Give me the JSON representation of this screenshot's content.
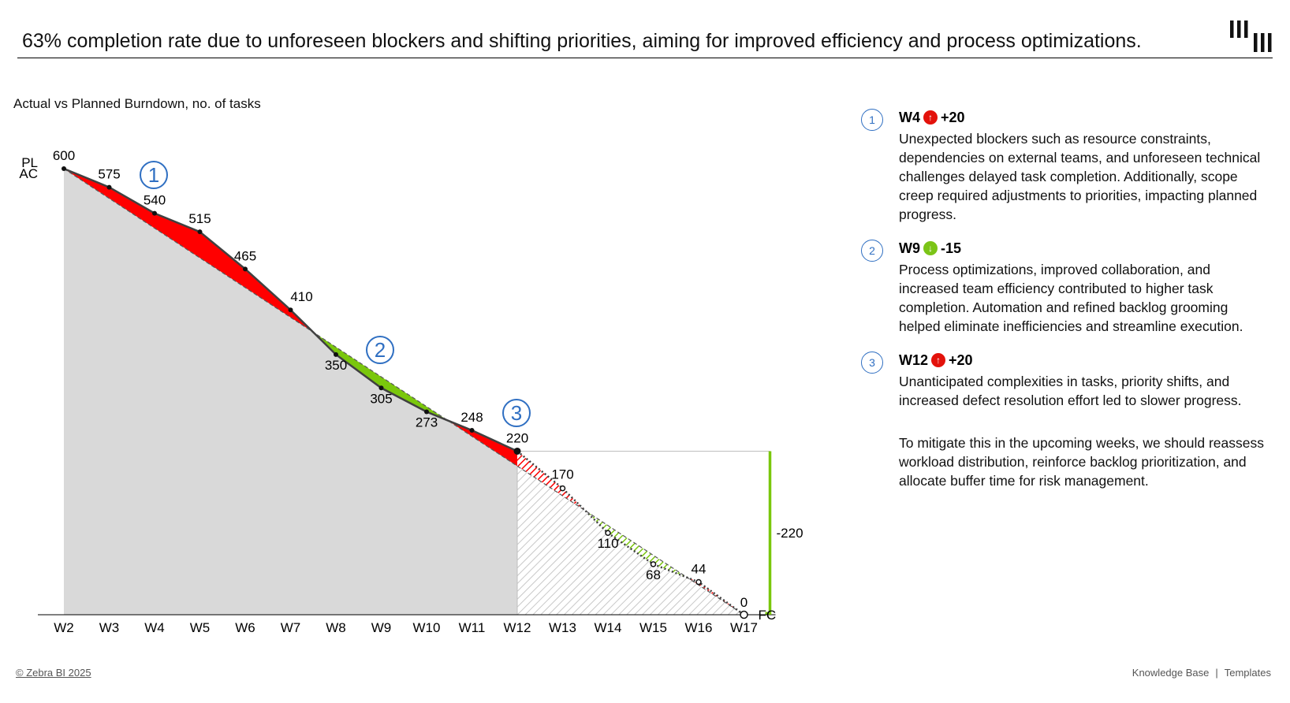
{
  "headline": "63% completion rate due to unforeseen blockers and shifting priorities, aiming for improved efficiency and process optimizations.",
  "chart_title": "Actual vs Planned Burndown, no. of tasks",
  "chart_data": {
    "type": "area",
    "categories": [
      "W2",
      "W3",
      "W4",
      "W5",
      "W6",
      "W7",
      "W8",
      "W9",
      "W10",
      "W11",
      "W12",
      "W13",
      "W14",
      "W15",
      "W16",
      "W17"
    ],
    "series": [
      {
        "name": "PL",
        "values": [
          600,
          560,
          520,
          480,
          440,
          400,
          360,
          320,
          280,
          240,
          200,
          160,
          120,
          80,
          40,
          0
        ]
      },
      {
        "name": "AC",
        "values": [
          600,
          575,
          540,
          515,
          465,
          410,
          350,
          305,
          273,
          248,
          220,
          null,
          null,
          null,
          null,
          null
        ]
      },
      {
        "name": "FC",
        "values": [
          null,
          null,
          null,
          null,
          null,
          null,
          null,
          null,
          null,
          null,
          220,
          170,
          110,
          68,
          44,
          0
        ]
      }
    ],
    "data_labels": [
      "600",
      "575",
      "540",
      "515",
      "465",
      "410",
      "350",
      "305",
      "273",
      "248",
      "220",
      "170",
      "110",
      "68",
      "44",
      "0"
    ],
    "start_labels": [
      "PL",
      "AC"
    ],
    "end_label": "FC",
    "variance_label": "-220",
    "markers": [
      "1",
      "2",
      "3"
    ],
    "colors": {
      "negative": "#ff0000",
      "positive": "#7ac70c",
      "area": "#d9d9d9",
      "line": "#404040",
      "variance": "#7ac70c",
      "marker": "#2f6fc2"
    },
    "ylim": [
      0,
      600
    ]
  },
  "notes": [
    {
      "num": "1",
      "week": "W4",
      "direction": "up",
      "arrow": "↑",
      "delta": "+20",
      "text": "Unexpected blockers such as resource constraints, dependencies on external teams, and unforeseen technical challenges delayed task completion. Additionally, scope creep required adjustments to priorities, impacting planned progress."
    },
    {
      "num": "2",
      "week": "W9",
      "direction": "down",
      "arrow": "↓",
      "delta": "-15",
      "text": "Process optimizations, improved collaboration, and increased team efficiency contributed to higher task completion. Automation and refined backlog grooming helped eliminate inefficiencies and streamline execution."
    },
    {
      "num": "3",
      "week": "W12",
      "direction": "up",
      "arrow": "↑",
      "delta": "+20",
      "text": "Unanticipated complexities in tasks, priority shifts, and increased defect resolution effort led to slower progress."
    }
  ],
  "mitigation": "To mitigate this in the upcoming weeks, we should reassess workload distribution, reinforce backlog prioritization, and allocate buffer time for risk management.",
  "footer": {
    "copyright": "© Zebra BI 2025",
    "knowledge_base": "Knowledge Base",
    "separator": "|",
    "templates": "Templates"
  }
}
